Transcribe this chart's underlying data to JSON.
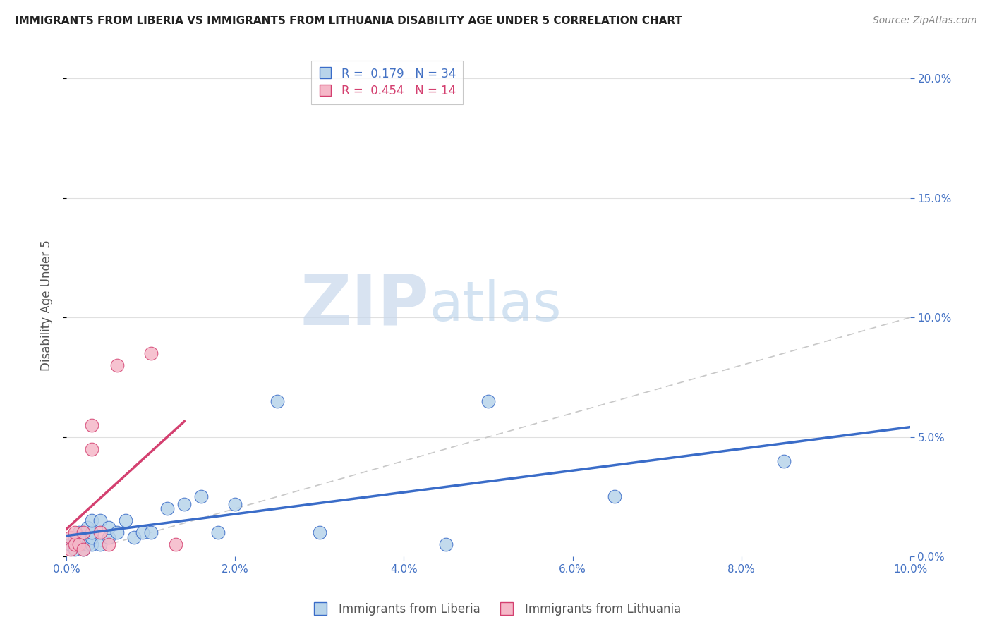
{
  "title": "IMMIGRANTS FROM LIBERIA VS IMMIGRANTS FROM LITHUANIA DISABILITY AGE UNDER 5 CORRELATION CHART",
  "source": "Source: ZipAtlas.com",
  "xlabel_bottom_liberia": "Immigrants from Liberia",
  "xlabel_bottom_lithuania": "Immigrants from Lithuania",
  "ylabel": "Disability Age Under 5",
  "xlim": [
    0.0,
    0.1
  ],
  "ylim": [
    0.0,
    0.21
  ],
  "yticks": [
    0.0,
    0.05,
    0.1,
    0.15,
    0.2
  ],
  "xticks": [
    0.0,
    0.02,
    0.04,
    0.06,
    0.08,
    0.1
  ],
  "liberia_x": [
    0.0005,
    0.001,
    0.001,
    0.0015,
    0.0015,
    0.002,
    0.002,
    0.002,
    0.0025,
    0.0025,
    0.003,
    0.003,
    0.003,
    0.003,
    0.004,
    0.004,
    0.005,
    0.005,
    0.006,
    0.007,
    0.008,
    0.009,
    0.01,
    0.012,
    0.014,
    0.016,
    0.018,
    0.02,
    0.025,
    0.03,
    0.045,
    0.05,
    0.065,
    0.085
  ],
  "liberia_y": [
    0.005,
    0.003,
    0.008,
    0.005,
    0.01,
    0.003,
    0.006,
    0.01,
    0.005,
    0.012,
    0.005,
    0.008,
    0.01,
    0.015,
    0.005,
    0.015,
    0.008,
    0.012,
    0.01,
    0.015,
    0.008,
    0.01,
    0.01,
    0.02,
    0.022,
    0.025,
    0.01,
    0.022,
    0.065,
    0.01,
    0.005,
    0.065,
    0.025,
    0.04
  ],
  "lithuania_x": [
    0.0005,
    0.0005,
    0.001,
    0.001,
    0.0015,
    0.002,
    0.002,
    0.003,
    0.003,
    0.004,
    0.005,
    0.006,
    0.01,
    0.013
  ],
  "lithuania_y": [
    0.003,
    0.008,
    0.005,
    0.01,
    0.005,
    0.003,
    0.01,
    0.045,
    0.055,
    0.01,
    0.005,
    0.08,
    0.085,
    0.005
  ],
  "R_liberia": 0.179,
  "N_liberia": 34,
  "R_lithuania": 0.454,
  "N_lithuania": 14,
  "color_liberia": "#b8d4ea",
  "color_lithuania": "#f5b8c8",
  "trendline_liberia_color": "#3a6cc8",
  "trendline_lithuania_color": "#d44070",
  "watermark_zip": "ZIP",
  "watermark_atlas": "atlas",
  "watermark_color_zip": "#c8d8ec",
  "watermark_color_atlas": "#b0cce8",
  "background_color": "#ffffff",
  "grid_color": "#e0e0e0",
  "title_color": "#222222",
  "source_color": "#888888",
  "axis_label_color": "#555555",
  "tick_color": "#4472c4",
  "legend_R_liberia_color": "#4472c4",
  "legend_R_lithuania_color": "#d44070"
}
